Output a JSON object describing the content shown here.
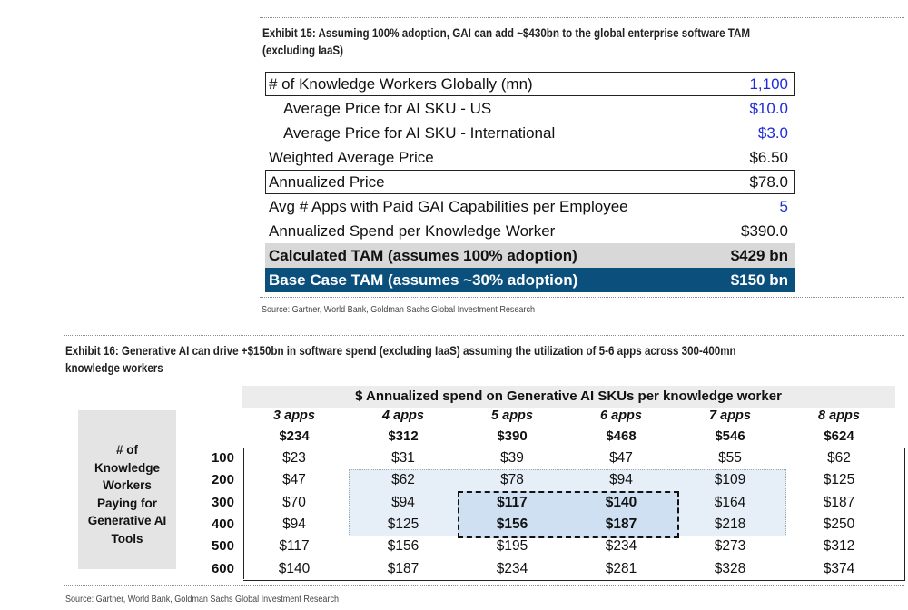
{
  "exhibit15": {
    "title_line1": "Exhibit 15: Assuming 100% adoption, GAI can add ~$430bn to the global enterprise software TAM",
    "title_line2": "(excluding IaaS)",
    "rows": [
      {
        "label": "# of Knowledge Workers Globally (mn)",
        "value": "1,100"
      },
      {
        "label": "Average Price for AI SKU - US",
        "value": "$10.0"
      },
      {
        "label": "Average Price for AI SKU - International",
        "value": "$3.0"
      },
      {
        "label": "Weighted Average Price",
        "value": "$6.50"
      },
      {
        "label": "Annualized Price",
        "value": "$78.0"
      },
      {
        "label": "Avg # Apps with Paid GAI Capabilities per Employee",
        "value": "5"
      },
      {
        "label": "Annualized Spend per Knowledge Worker",
        "value": "$390.0"
      },
      {
        "label": "Calculated TAM (assumes 100% adoption)",
        "value": "$429 bn"
      },
      {
        "label": "Base Case TAM (assumes ~30% adoption)",
        "value": "$150 bn"
      }
    ],
    "source": "Source: Gartner, World Bank, Goldman Sachs Global Investment Research"
  },
  "exhibit16": {
    "title_line1": "Exhibit 16: Generative AI can drive +$150bn in software spend (excluding IaaS) assuming the utilization of 5-6 apps across 300-400mn",
    "title_line2": "knowledge workers",
    "header": "$ Annualized spend on Generative AI SKUs per knowledge worker",
    "side_label": [
      "# of",
      "Knowledge",
      "Workers",
      "Paying for",
      "Generative AI",
      "Tools"
    ],
    "columns": [
      {
        "apps": "3 apps",
        "spend": "$234"
      },
      {
        "apps": "4 apps",
        "spend": "$312"
      },
      {
        "apps": "5 apps",
        "spend": "$390"
      },
      {
        "apps": "6 apps",
        "spend": "$468"
      },
      {
        "apps": "7 apps",
        "spend": "$546"
      },
      {
        "apps": "8 apps",
        "spend": "$624"
      }
    ],
    "rows": [
      {
        "workers": "100",
        "values": [
          "$23",
          "$31",
          "$39",
          "$47",
          "$55",
          "$62"
        ]
      },
      {
        "workers": "200",
        "values": [
          "$47",
          "$62",
          "$78",
          "$94",
          "$109",
          "$125"
        ]
      },
      {
        "workers": "300",
        "values": [
          "$70",
          "$94",
          "$117",
          "$140",
          "$164",
          "$187"
        ]
      },
      {
        "workers": "400",
        "values": [
          "$94",
          "$125",
          "$156",
          "$187",
          "$218",
          "$250"
        ]
      },
      {
        "workers": "500",
        "values": [
          "$117",
          "$156",
          "$195",
          "$234",
          "$273",
          "$312"
        ]
      },
      {
        "workers": "600",
        "values": [
          "$140",
          "$187",
          "$234",
          "$281",
          "$328",
          "$374"
        ]
      }
    ],
    "source": "Source: Gartner, World Bank, Goldman Sachs Global Investment Research"
  }
}
